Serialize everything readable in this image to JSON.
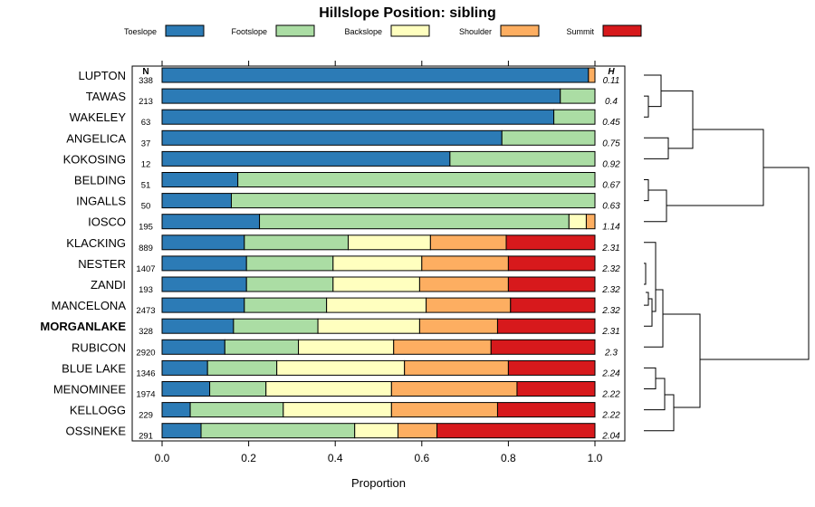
{
  "chart_data": {
    "type": "bar",
    "orientation": "horizontal",
    "stacked": true,
    "title": "Hillslope Position: sibling",
    "xlabel": "Proportion",
    "ylabel": "",
    "xlim": [
      0,
      1
    ],
    "xticks": [
      "0.0",
      "0.2",
      "0.4",
      "0.6",
      "0.8",
      "1.0"
    ],
    "n_header": "N",
    "h_header": "H",
    "highlight": "MORGANLAKE",
    "legend_position": "top",
    "colors": {
      "Toeslope": "#2c7bb6",
      "Footslope": "#abdda4",
      "Backslope": "#ffffbf",
      "Shoulder": "#fdae61",
      "Summit": "#d7191c"
    },
    "series_names": [
      "Toeslope",
      "Footslope",
      "Backslope",
      "Shoulder",
      "Summit"
    ],
    "categories": [
      "LUPTON",
      "TAWAS",
      "WAKELEY",
      "ANGELICA",
      "KOKOSING",
      "BELDING",
      "INGALLS",
      "IOSCO",
      "KLACKING",
      "NESTER",
      "ZANDI",
      "MANCELONA",
      "MORGANLAKE",
      "RUBICON",
      "BLUE LAKE",
      "MENOMINEE",
      "KELLOGG",
      "OSSINEKE"
    ],
    "n_labels": [
      "338",
      "213",
      "63",
      "37",
      "12",
      "51",
      "50",
      "195",
      "889",
      "1407",
      "193",
      "2473",
      "328",
      "2920",
      "1346",
      "1974",
      "229",
      "291"
    ],
    "h_labels": [
      "0.11",
      "0.4",
      "0.45",
      "0.75",
      "0.92",
      "0.67",
      "0.63",
      "1.14",
      "2.31",
      "2.32",
      "2.32",
      "2.32",
      "2.31",
      "2.3",
      "2.24",
      "2.22",
      "2.22",
      "2.04"
    ],
    "values": [
      [
        0.985,
        0,
        0,
        0.015,
        0
      ],
      [
        0.92,
        0.08,
        0,
        0,
        0
      ],
      [
        0.905,
        0.095,
        0,
        0,
        0
      ],
      [
        0.785,
        0.215,
        0,
        0,
        0
      ],
      [
        0.665,
        0.335,
        0,
        0,
        0
      ],
      [
        0.175,
        0.825,
        0,
        0,
        0
      ],
      [
        0.16,
        0.84,
        0,
        0,
        0
      ],
      [
        0.225,
        0.715,
        0.04,
        0.02,
        0
      ],
      [
        0.19,
        0.24,
        0.19,
        0.175,
        0.205
      ],
      [
        0.195,
        0.2,
        0.205,
        0.2,
        0.2
      ],
      [
        0.195,
        0.2,
        0.2,
        0.205,
        0.2
      ],
      [
        0.19,
        0.19,
        0.23,
        0.195,
        0.195
      ],
      [
        0.165,
        0.195,
        0.235,
        0.18,
        0.225
      ],
      [
        0.145,
        0.17,
        0.22,
        0.225,
        0.24
      ],
      [
        0.105,
        0.16,
        0.295,
        0.24,
        0.2
      ],
      [
        0.11,
        0.13,
        0.29,
        0.29,
        0.18
      ],
      [
        0.065,
        0.215,
        0.25,
        0.245,
        0.225
      ],
      [
        0.09,
        0.355,
        0.1,
        0.09,
        0.365
      ]
    ],
    "dendrogram_order": [
      "LUPTON",
      "TAWAS",
      "WAKELEY",
      "ANGELICA",
      "KOKOSING",
      "BELDING",
      "INGALLS",
      "IOSCO",
      "KLACKING",
      "NESTER",
      "ZANDI",
      "MANCELONA",
      "MORGANLAKE",
      "RUBICON",
      "BLUE LAKE",
      "MENOMINEE",
      "KELLOGG",
      "OSSINEKE"
    ]
  }
}
